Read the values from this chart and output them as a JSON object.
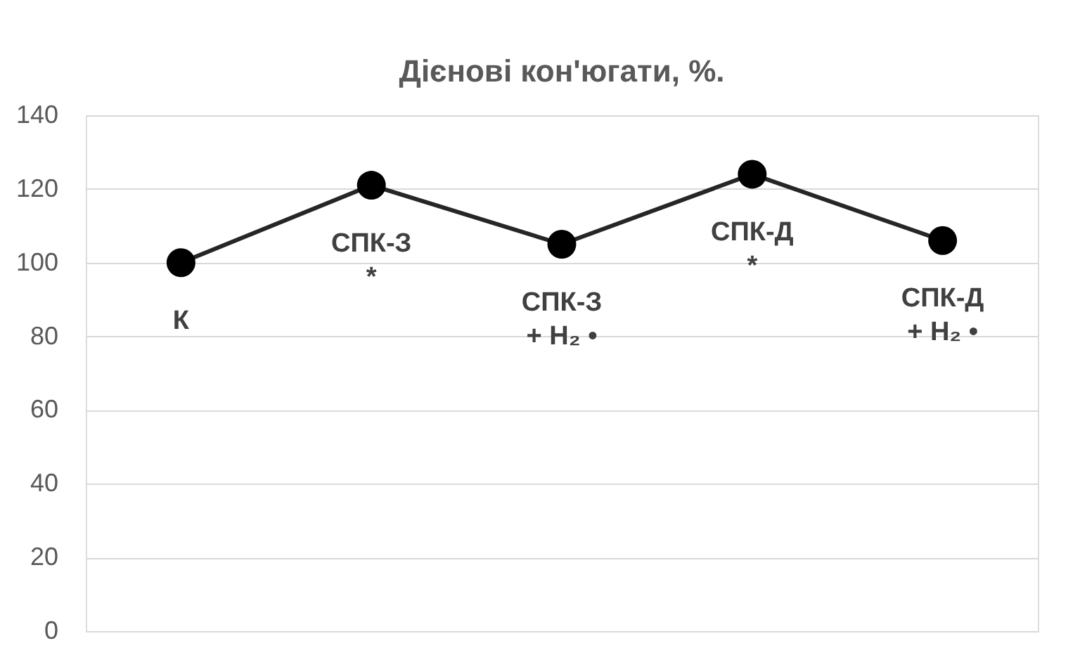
{
  "chart_data": {
    "type": "line",
    "title": "Дієнові кон'югати, %.",
    "categories": [
      "К",
      "СПК-З *",
      "СПК-З + H₂ •",
      "СПК-Д *",
      "СПК-Д + H₂ •"
    ],
    "series": [
      {
        "color": "#262626",
        "values": [
          100,
          121,
          105,
          124,
          106
        ]
      }
    ],
    "ylim": [
      0,
      140
    ],
    "yticks": [
      0,
      20,
      40,
      60,
      80,
      100,
      120,
      140
    ],
    "grid": "y",
    "marker": "circle",
    "line_style": "solid",
    "tick_labels": "y"
  }
}
